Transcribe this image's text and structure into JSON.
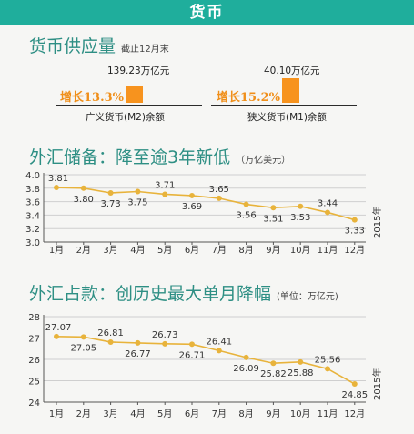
{
  "header": {
    "title": "货币"
  },
  "money_supply": {
    "title": "货币供应量",
    "note": "截止12月末",
    "items": [
      {
        "value_label": "139.23万亿元",
        "growth": "增长13.3%",
        "label": "广义货币(M2)余额"
      },
      {
        "value_label": "40.10万亿元",
        "growth": "增长15.2%",
        "label": "狭义货币(M1)余额"
      }
    ]
  },
  "reserves": {
    "title": "外汇储备：降至逾3年新低",
    "note": "（万亿美元）"
  },
  "forex_position": {
    "title": "外汇占款：创历史最大单月降幅",
    "note": "(单位：万亿元)"
  },
  "chart_data": [
    {
      "type": "line",
      "categories": [
        "1月",
        "2月",
        "3月",
        "4月",
        "5月",
        "6月",
        "7月",
        "8月",
        "9月",
        "10月",
        "11月",
        "12月"
      ],
      "values": [
        3.81,
        3.8,
        3.73,
        3.75,
        3.71,
        3.69,
        3.65,
        3.56,
        3.51,
        3.53,
        3.44,
        3.33
      ],
      "value_labels": [
        "3.81",
        "3.80",
        "3.73",
        "3.75",
        "3.71",
        "3.69",
        "3.65",
        "3.56",
        "3.51",
        "3.53",
        "3.44",
        "3.33"
      ],
      "ylim": [
        3.0,
        4.0
      ],
      "yticks": [
        "3.0",
        "3.2",
        "3.4",
        "3.6",
        "3.8",
        "4.0"
      ],
      "year_label": "2015年",
      "color": "#e8b33b"
    },
    {
      "type": "line",
      "categories": [
        "1月",
        "2月",
        "3月",
        "4月",
        "5月",
        "6月",
        "7月",
        "8月",
        "9月",
        "10月",
        "11月",
        "12月"
      ],
      "values": [
        27.07,
        27.05,
        26.81,
        26.77,
        26.73,
        26.71,
        26.41,
        26.09,
        25.82,
        25.88,
        25.56,
        24.85
      ],
      "value_labels": [
        "27.07",
        "27.05",
        "26.81",
        "26.77",
        "26.73",
        "26.71",
        "26.41",
        "26.09",
        "25.82",
        "25.88",
        "25.56",
        "24.85"
      ],
      "ylim": [
        24,
        28
      ],
      "yticks": [
        "24",
        "25",
        "26",
        "27",
        "28"
      ],
      "year_label": "2015年",
      "color": "#e8b33b"
    }
  ]
}
